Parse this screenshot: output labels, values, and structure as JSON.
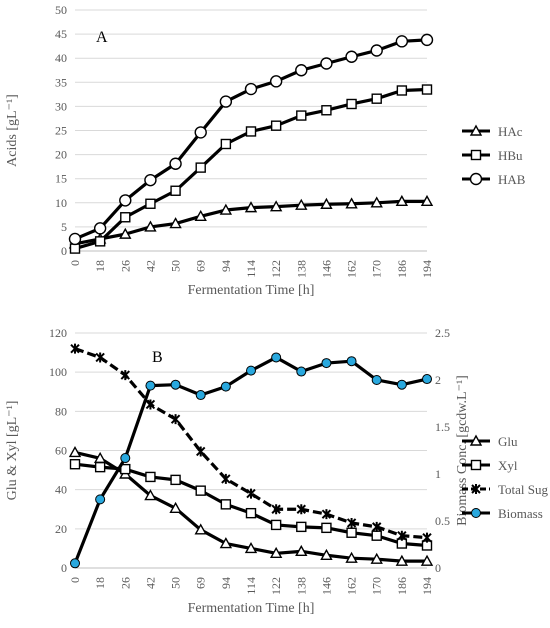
{
  "chart_data": [
    {
      "type": "line",
      "panel_label": "A",
      "xlabel": "Fermentation Time [h]",
      "ylabel": "Acids [gL⁻¹]",
      "categories": [
        "0",
        "18",
        "26",
        "42",
        "50",
        "69",
        "94",
        "114",
        "122",
        "138",
        "146",
        "162",
        "170",
        "186",
        "194"
      ],
      "ylim": [
        0,
        50
      ],
      "yticks": [
        0,
        5,
        10,
        15,
        20,
        25,
        30,
        35,
        40,
        45,
        50
      ],
      "grid": true,
      "legend_position": "right",
      "series": [
        {
          "name": "HAc",
          "marker": "triangle",
          "values": [
            1.5,
            2.5,
            3.5,
            5.0,
            5.7,
            7.2,
            8.5,
            9.0,
            9.2,
            9.5,
            9.7,
            9.8,
            10.0,
            10.3,
            10.3
          ]
        },
        {
          "name": "HBu",
          "marker": "square",
          "values": [
            0.5,
            2.0,
            7.0,
            9.8,
            12.5,
            17.3,
            22.2,
            24.8,
            26.0,
            28.1,
            29.2,
            30.5,
            31.6,
            33.3,
            33.5
          ]
        },
        {
          "name": "HAB",
          "marker": "circle",
          "values": [
            2.5,
            4.7,
            10.5,
            14.7,
            18.1,
            24.6,
            31.0,
            33.6,
            35.2,
            37.5,
            38.9,
            40.3,
            41.6,
            43.5,
            43.8
          ]
        }
      ]
    },
    {
      "type": "line",
      "panel_label": "B",
      "xlabel": "Fermentation Time [h]",
      "ylabel": "Glu & Xyl [gL⁻¹]",
      "y2label": "Biomass Conc. [gcdw.L⁻¹]",
      "categories": [
        "0",
        "18",
        "26",
        "42",
        "50",
        "69",
        "94",
        "114",
        "122",
        "138",
        "146",
        "162",
        "170",
        "186",
        "194"
      ],
      "ylim": [
        0,
        120
      ],
      "yticks": [
        0,
        20,
        40,
        60,
        80,
        100,
        120
      ],
      "y2lim": [
        0,
        2.5
      ],
      "y2ticks": [
        "0",
        "0.5",
        "1",
        "1.5",
        "2",
        "2.5"
      ],
      "grid": true,
      "legend_position": "right",
      "series": [
        {
          "name": "Glu",
          "marker": "triangle",
          "axis": "left",
          "values": [
            59,
            56,
            48,
            37,
            30.5,
            19.5,
            12.5,
            10,
            7.5,
            8.5,
            6.5,
            5,
            4.5,
            3.5,
            3.5
          ]
        },
        {
          "name": "Xyl",
          "marker": "square",
          "axis": "left",
          "values": [
            53,
            51.5,
            50.5,
            46.5,
            45,
            39.5,
            32.5,
            28,
            22,
            21,
            20.5,
            18,
            16.5,
            12.5,
            11.5
          ]
        },
        {
          "name": "Total Sug",
          "marker": "x",
          "axis": "left",
          "dashed": true,
          "values": [
            112,
            107.5,
            98.5,
            83.5,
            76,
            59.5,
            45.5,
            38,
            30,
            30,
            27.5,
            23,
            21,
            16.5,
            15.5
          ]
        },
        {
          "name": "Biomass",
          "marker": "filled-circle",
          "axis": "right",
          "values": [
            0.05,
            0.73,
            1.17,
            1.94,
            1.95,
            1.84,
            1.93,
            2.1,
            2.24,
            2.09,
            2.18,
            2.2,
            2.0,
            1.95,
            2.01
          ]
        }
      ]
    }
  ],
  "colors": {
    "line": "#000000",
    "grid": "#d9d9d9",
    "axis_text": "#595959",
    "biomass_fill": "#29a8de"
  }
}
